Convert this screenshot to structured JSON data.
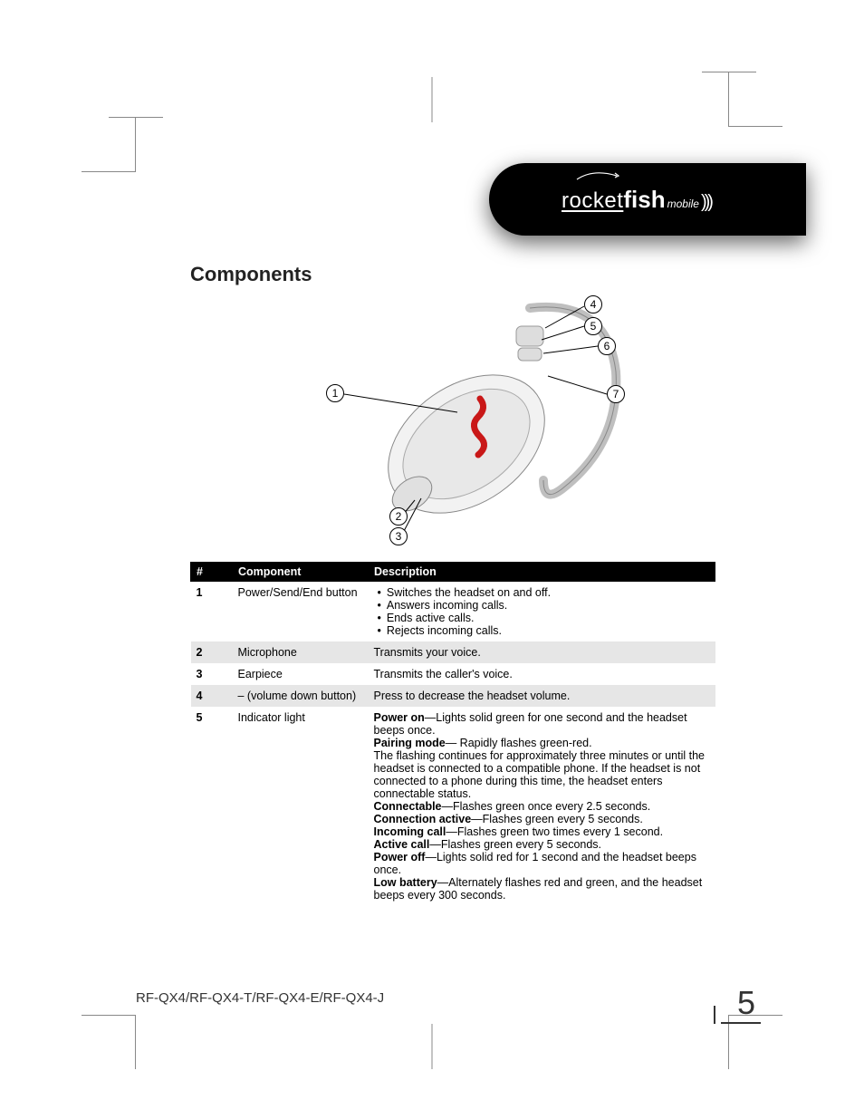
{
  "brand": {
    "rocket": "rocket",
    "fish": "fish",
    "mobile": "mobile",
    "waves": ")))"
  },
  "section_title": "Components",
  "callouts": {
    "c1": "1",
    "c2": "2",
    "c3": "3",
    "c4": "4",
    "c5": "5",
    "c6": "6",
    "c7": "7"
  },
  "table": {
    "headers": {
      "num": "#",
      "component": "Component",
      "description": "Description"
    },
    "rows": [
      {
        "num": "1",
        "component": "Power/Send/End button",
        "desc_list": [
          "Switches the headset on and off.",
          "Answers incoming calls.",
          "Ends active calls.",
          "Rejects incoming calls."
        ],
        "shade": false
      },
      {
        "num": "2",
        "component": "Microphone",
        "desc_text": "Transmits your voice.",
        "shade": true
      },
      {
        "num": "3",
        "component": "Earpiece",
        "desc_text": "Transmits the caller's voice.",
        "shade": false
      },
      {
        "num": "4",
        "component": "– (volume down button)",
        "desc_text": "Press to decrease the headset volume.",
        "shade": true
      },
      {
        "num": "5",
        "component": "Indicator light",
        "desc_rich": [
          {
            "b": "Power on",
            "t": "—Lights solid green for one second and the headset beeps once."
          },
          {
            "b": "Pairing mode",
            "t": "— Rapidly flashes green-red."
          },
          {
            "plain": "The flashing continues for approximately three minutes or until the headset is connected to a compatible phone. If the headset is not connected to a phone during this time, the headset enters connectable status."
          },
          {
            "b": "Connectable",
            "t": "—Flashes green once every 2.5 seconds."
          },
          {
            "b": "Connection active",
            "t": "—Flashes green every 5 seconds."
          },
          {
            "b": "Incoming call",
            "t": "—Flashes green two times every 1 second."
          },
          {
            "b": "Active call",
            "t": "—Flashes green every 5 seconds."
          },
          {
            "b": "Power off",
            "t": "—Lights solid red for 1 second and the headset beeps once."
          },
          {
            "b": "Low battery",
            "t": "—Alternately flashes red and green, and the headset beeps every 300 seconds."
          }
        ],
        "shade": false
      }
    ]
  },
  "footer": {
    "model": "RF-QX4/RF-QX4-T/RF-QX4-E/RF-QX4-J",
    "page": "5"
  },
  "diagram_colors": {
    "body_light": "#f2f2f2",
    "body_dark": "#d8d8d8",
    "outline": "#888888",
    "button_red": "#c91818",
    "hook_gray": "#bfbfbf"
  }
}
